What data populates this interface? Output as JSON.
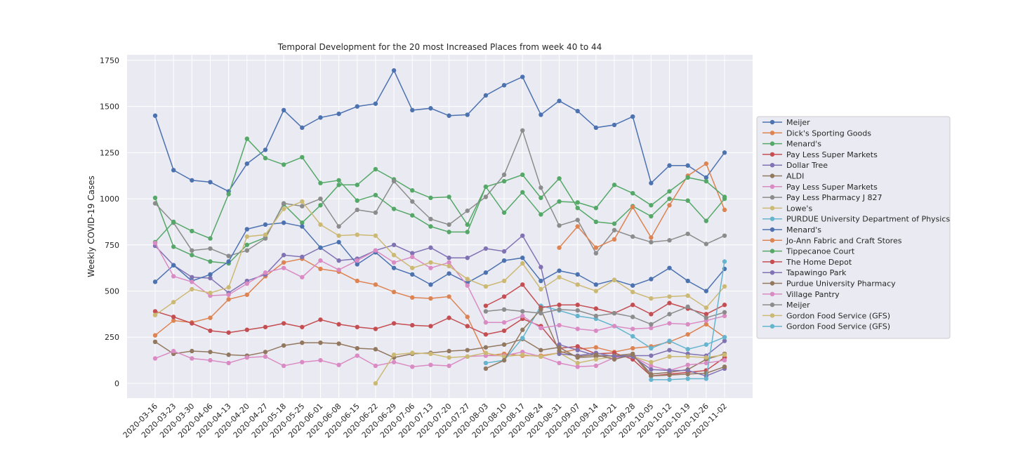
{
  "chart_data": {
    "type": "line",
    "title": "Temporal Development for the 20 most Increased Places from week 40 to 44",
    "xlabel": "",
    "ylabel": "Weekly COVID-19 Cases",
    "ylim": [
      -80,
      1780
    ],
    "yticks": [
      0,
      250,
      500,
      750,
      1000,
      1250,
      1500,
      1750
    ],
    "grid": true,
    "legend_position": "right",
    "x": [
      "2020-03-16",
      "2020-03-23",
      "2020-03-30",
      "2020-04-06",
      "2020-04-13",
      "2020-04-20",
      "2020-04-27",
      "2020-05-18",
      "2020-05-25",
      "2020-06-01",
      "2020-06-08",
      "2020-06-15",
      "2020-06-22",
      "2020-06-29",
      "2020-07-06",
      "2020-07-13",
      "2020-07-20",
      "2020-07-27",
      "2020-08-03",
      "2020-08-10",
      "2020-08-17",
      "2020-08-24",
      "2020-08-31",
      "2020-09-07",
      "2020-09-14",
      "2020-09-21",
      "2020-09-28",
      "2020-10-05",
      "2020-10-12",
      "2020-10-19",
      "2020-10-26",
      "2020-11-02"
    ],
    "series": [
      {
        "name": "Meijer",
        "color": "#4c72b0",
        "values": [
          1450,
          1155,
          1100,
          1090,
          1040,
          1190,
          1265,
          1480,
          1385,
          1440,
          1460,
          1500,
          1515,
          1695,
          1480,
          1490,
          1450,
          1455,
          1560,
          1615,
          1660,
          1455,
          1530,
          1475,
          1385,
          1400,
          1445,
          1085,
          1180,
          1180,
          1115,
          1250
        ]
      },
      {
        "name": "Dick's Sporting Goods",
        "color": "#dd8452",
        "values": [
          260,
          340,
          330,
          355,
          455,
          480,
          580,
          655,
          675,
          620,
          605,
          555,
          535,
          495,
          465,
          460,
          470,
          360,
          150,
          160,
          150,
          150,
          165,
          185,
          195,
          170,
          190,
          200,
          225,
          265,
          320,
          250
        ]
      },
      {
        "name": "Menard's",
        "color": "#55a868",
        "values": [
          1005,
          740,
          695,
          660,
          650,
          750,
          790,
          970,
          870,
          965,
          1075,
          1075,
          1160,
          1105,
          1045,
          1005,
          1010,
          860,
          1065,
          1095,
          1130,
          1005,
          1110,
          950,
          875,
          865,
          960,
          905,
          1000,
          990,
          880,
          1000
        ]
      },
      {
        "name": "Pay Less Super Markets",
        "color": "#c44e52",
        "values": [
          390,
          360,
          325,
          285,
          275,
          290,
          305,
          325,
          305,
          345,
          320,
          305,
          295,
          325,
          315,
          310,
          355,
          310,
          265,
          285,
          350,
          310,
          190,
          200,
          160,
          165,
          130,
          40,
          50,
          60,
          70,
          140
        ]
      },
      {
        "name": "Dollar Tree",
        "color": "#8172b3",
        "values": [
          745,
          640,
          575,
          570,
          490,
          555,
          590,
          695,
          685,
          735,
          665,
          675,
          720,
          750,
          705,
          735,
          680,
          680,
          730,
          715,
          800,
          630,
          210,
          180,
          150,
          150,
          150,
          150,
          180,
          160,
          150,
          230
        ]
      },
      {
        "name": "ALDI",
        "color": "#937860",
        "values": [
          225,
          160,
          175,
          170,
          155,
          150,
          170,
          205,
          220,
          220,
          215,
          190,
          185,
          140,
          160,
          165,
          175,
          180,
          195,
          210,
          240,
          180,
          195,
          140,
          145,
          150,
          160,
          50,
          60,
          75,
          130,
          160
        ]
      },
      {
        "name": "Pay Less Super Markets",
        "color": "#da8bc3",
        "values": [
          135,
          175,
          135,
          125,
          110,
          140,
          145,
          95,
          115,
          125,
          100,
          150,
          95,
          115,
          90,
          100,
          95,
          145,
          150,
          150,
          170,
          145,
          110,
          90,
          95,
          140,
          145,
          95,
          70,
          100,
          110,
          125
        ]
      },
      {
        "name": "Pay Less Pharmacy J 827",
        "color": "#8c8c8c",
        "values": [
          975,
          870,
          720,
          730,
          690,
          720,
          785,
          975,
          960,
          1000,
          850,
          940,
          925,
          1095,
          985,
          890,
          860,
          935,
          1010,
          1130,
          1370,
          1060,
          855,
          885,
          705,
          830,
          795,
          765,
          775,
          810,
          755,
          800
        ]
      },
      {
        "name": "Lowe's",
        "color": "#ccb974",
        "values": [
          null,
          null,
          null,
          null,
          null,
          null,
          null,
          null,
          null,
          null,
          null,
          null,
          0,
          155,
          165,
          160,
          140,
          145,
          165,
          145,
          155,
          145,
          165,
          110,
          130,
          145,
          145,
          115,
          145,
          145,
          140,
          155
        ]
      },
      {
        "name": "PURDUE University Department of Physics",
        "color": "#64b5cd",
        "values": [
          null,
          null,
          null,
          null,
          null,
          null,
          null,
          null,
          null,
          null,
          null,
          null,
          null,
          null,
          null,
          null,
          null,
          null,
          110,
          125,
          245,
          420,
          395,
          365,
          350,
          310,
          255,
          190,
          230,
          185,
          210,
          250
        ]
      },
      {
        "name": "Menard's",
        "color": "#4c72b0",
        "values": [
          550,
          640,
          555,
          590,
          660,
          835,
          860,
          870,
          850,
          735,
          765,
          645,
          710,
          625,
          590,
          535,
          595,
          545,
          600,
          665,
          680,
          555,
          610,
          590,
          535,
          560,
          530,
          565,
          625,
          555,
          500,
          620
        ]
      },
      {
        "name": "Jo-Ann Fabric and Craft Stores",
        "color": "#dd8452",
        "values": [
          null,
          null,
          null,
          null,
          null,
          null,
          null,
          null,
          null,
          null,
          null,
          null,
          null,
          null,
          null,
          null,
          null,
          null,
          null,
          null,
          null,
          null,
          735,
          850,
          735,
          780,
          955,
          790,
          965,
          1125,
          1190,
          940
        ]
      },
      {
        "name": "Tippecanoe Court",
        "color": "#55a868",
        "values": [
          765,
          875,
          825,
          785,
          1025,
          1325,
          1220,
          1185,
          1225,
          1085,
          1100,
          990,
          1020,
          945,
          910,
          850,
          820,
          820,
          1065,
          925,
          1035,
          915,
          985,
          980,
          950,
          1075,
          1030,
          965,
          1040,
          1115,
          1095,
          1010
        ]
      },
      {
        "name": "The Home Depot",
        "color": "#c44e52",
        "values": [
          null,
          null,
          null,
          null,
          null,
          null,
          null,
          null,
          null,
          null,
          null,
          null,
          null,
          null,
          null,
          null,
          null,
          null,
          420,
          470,
          535,
          410,
          425,
          425,
          405,
          380,
          425,
          375,
          435,
          405,
          375,
          425
        ]
      },
      {
        "name": "Tapawingo Park",
        "color": "#8172b3",
        "values": [
          null,
          null,
          null,
          null,
          null,
          null,
          null,
          null,
          null,
          null,
          null,
          null,
          null,
          null,
          null,
          null,
          null,
          null,
          null,
          null,
          null,
          null,
          160,
          150,
          165,
          145,
          145,
          75,
          70,
          70,
          40,
          80
        ]
      },
      {
        "name": "Purdue University Pharmacy",
        "color": "#937860",
        "values": [
          null,
          null,
          null,
          null,
          null,
          null,
          null,
          null,
          null,
          null,
          null,
          null,
          null,
          null,
          null,
          null,
          null,
          null,
          80,
          125,
          290,
          400,
          175,
          145,
          155,
          130,
          155,
          40,
          45,
          50,
          55,
          90
        ]
      },
      {
        "name": "Village Pantry",
        "color": "#da8bc3",
        "values": [
          760,
          580,
          550,
          475,
          480,
          540,
          600,
          625,
          575,
          665,
          615,
          665,
          720,
          655,
          685,
          625,
          655,
          530,
          330,
          330,
          365,
          300,
          315,
          295,
          285,
          310,
          295,
          300,
          325,
          320,
          340,
          365
        ]
      },
      {
        "name": "Meijer",
        "color": "#8c8c8c",
        "values": [
          null,
          null,
          null,
          null,
          null,
          null,
          null,
          null,
          null,
          null,
          null,
          null,
          null,
          null,
          null,
          null,
          null,
          null,
          390,
          400,
          390,
          380,
          400,
          395,
          365,
          380,
          360,
          320,
          375,
          415,
          355,
          385
        ]
      },
      {
        "name": "Gordon Food Service (GFS)",
        "color": "#ccb974",
        "values": [
          370,
          440,
          510,
          490,
          520,
          795,
          805,
          945,
          985,
          860,
          800,
          805,
          800,
          695,
          625,
          655,
          635,
          565,
          525,
          555,
          650,
          510,
          575,
          535,
          500,
          560,
          495,
          460,
          470,
          475,
          410,
          525
        ]
      },
      {
        "name": "Gordon Food Service (GFS)",
        "color": "#64b5cd",
        "values": [
          null,
          null,
          null,
          null,
          null,
          null,
          null,
          null,
          null,
          null,
          null,
          null,
          null,
          null,
          null,
          null,
          null,
          null,
          null,
          null,
          null,
          null,
          null,
          null,
          null,
          null,
          null,
          20,
          20,
          25,
          25,
          660
        ]
      }
    ]
  }
}
